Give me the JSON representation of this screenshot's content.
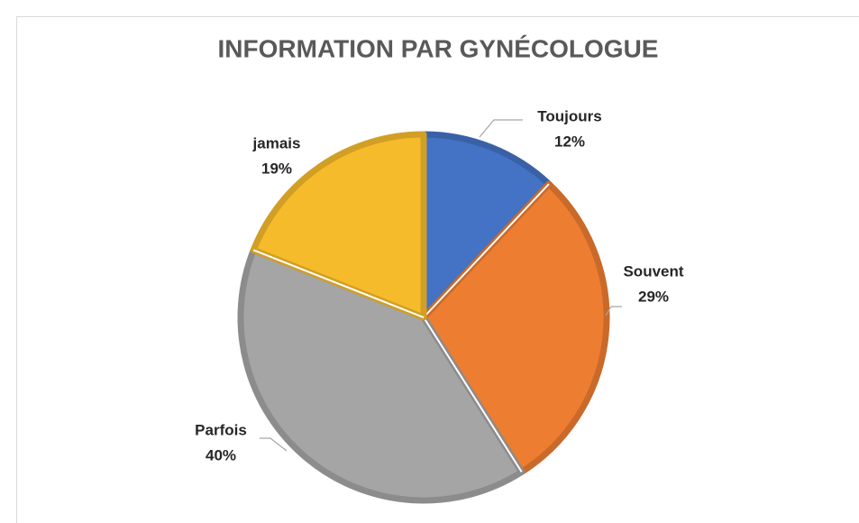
{
  "chart_data": {
    "type": "pie",
    "title": "INFORMATION PAR GYNÉCOLOGUE",
    "categories": [
      "Toujours",
      "Souvent",
      "Parfois",
      "jamais"
    ],
    "values": [
      12,
      29,
      40,
      19
    ],
    "value_labels": [
      "12%",
      "29%",
      "40%",
      "19%"
    ],
    "colors": [
      "#4472c4",
      "#ed7d31",
      "#a5a5a5",
      "#f6bb2b"
    ]
  }
}
